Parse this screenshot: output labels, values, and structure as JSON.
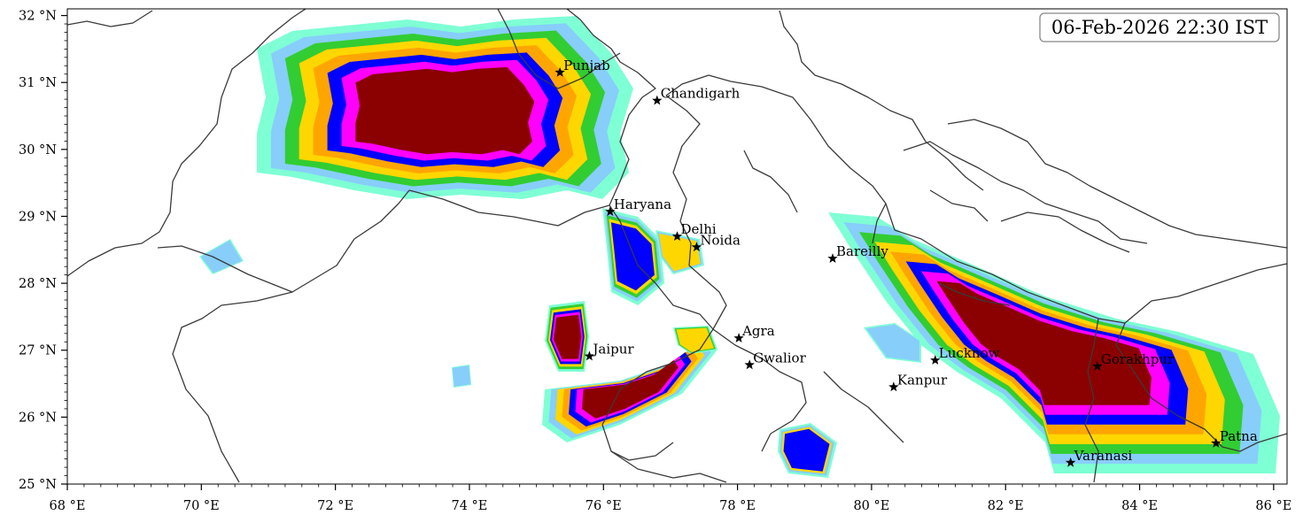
{
  "timestamp": "06-Feb-2026 22:30 IST",
  "axes": {
    "lon_min": 68.0,
    "lon_max": 86.2,
    "lat_min": 25.0,
    "lat_max": 32.1,
    "x_ticks": [
      {
        "value": 68,
        "label": "68 °E"
      },
      {
        "value": 70,
        "label": "70 °E"
      },
      {
        "value": 72,
        "label": "72 °E"
      },
      {
        "value": 74,
        "label": "74 °E"
      },
      {
        "value": 76,
        "label": "76 °E"
      },
      {
        "value": 78,
        "label": "78 °E"
      },
      {
        "value": 80,
        "label": "80 °E"
      },
      {
        "value": 82,
        "label": "82 °E"
      },
      {
        "value": 84,
        "label": "84 °E"
      },
      {
        "value": 86,
        "label": "86 °E"
      }
    ],
    "y_ticks": [
      {
        "value": 25,
        "label": "25 °N"
      },
      {
        "value": 26,
        "label": "26 °N"
      },
      {
        "value": 27,
        "label": "27 °N"
      },
      {
        "value": 28,
        "label": "28 °N"
      },
      {
        "value": 29,
        "label": "29 °N"
      },
      {
        "value": 30,
        "label": "30 °N"
      },
      {
        "value": 31,
        "label": "31 °N"
      },
      {
        "value": 32,
        "label": "32 °N"
      }
    ]
  },
  "cities": [
    {
      "name": "Punjab",
      "lon": 75.35,
      "lat": 31.15
    },
    {
      "name": "Chandigarh",
      "lon": 76.8,
      "lat": 30.73
    },
    {
      "name": "Haryana",
      "lon": 76.1,
      "lat": 29.07
    },
    {
      "name": "Delhi",
      "lon": 77.1,
      "lat": 28.7
    },
    {
      "name": "Noida",
      "lon": 77.39,
      "lat": 28.54
    },
    {
      "name": "Bareilly",
      "lon": 79.42,
      "lat": 28.37
    },
    {
      "name": "Agra",
      "lon": 78.02,
      "lat": 27.18
    },
    {
      "name": "Jaipur",
      "lon": 75.79,
      "lat": 26.91
    },
    {
      "name": "Gwalior",
      "lon": 78.18,
      "lat": 26.78
    },
    {
      "name": "Lucknow",
      "lon": 80.95,
      "lat": 26.85
    },
    {
      "name": "Kanpur",
      "lon": 80.33,
      "lat": 26.45
    },
    {
      "name": "Gorakhpur",
      "lon": 83.37,
      "lat": 26.76
    },
    {
      "name": "Varanasi",
      "lon": 82.97,
      "lat": 25.32
    },
    {
      "name": "Patna",
      "lon": 85.14,
      "lat": 25.61
    }
  ],
  "colors": {
    "level1": "#7fffd4",
    "level2": "#87cefa",
    "level3": "#32cd32",
    "level4": "#ffd700",
    "level5": "#ffa500",
    "level6": "#0000ff",
    "level7": "#ff00ff",
    "level8": "#8b0000",
    "boundary": "#3a3a3a"
  }
}
